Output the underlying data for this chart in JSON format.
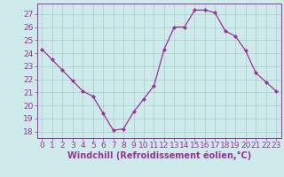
{
  "x": [
    0,
    1,
    2,
    3,
    4,
    5,
    6,
    7,
    8,
    9,
    10,
    11,
    12,
    13,
    14,
    15,
    16,
    17,
    18,
    19,
    20,
    21,
    22,
    23
  ],
  "y": [
    24.3,
    23.5,
    22.7,
    21.9,
    21.1,
    20.7,
    19.4,
    18.1,
    18.2,
    19.5,
    20.5,
    21.5,
    24.3,
    26.0,
    26.0,
    27.3,
    27.3,
    27.1,
    25.7,
    25.3,
    24.2,
    22.5,
    21.8,
    21.1
  ],
  "line_color": "#993399",
  "marker": "D",
  "marker_size": 2.0,
  "bg_color": "#ceeaea",
  "grid_color": "#aacccc",
  "xlabel": "Windchill (Refroidissement éolien,°C)",
  "ylabel_ticks": [
    18,
    19,
    20,
    21,
    22,
    23,
    24,
    25,
    26,
    27
  ],
  "ylim": [
    17.5,
    27.8
  ],
  "xlim": [
    -0.5,
    23.5
  ],
  "xlabel_fontsize": 7.0,
  "tick_fontsize": 6.5,
  "tick_color": "#993399",
  "label_color": "#993399",
  "spine_color": "#993399",
  "line_width": 0.9
}
